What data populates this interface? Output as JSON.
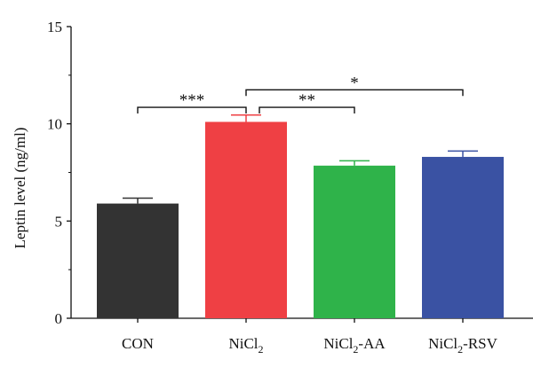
{
  "chart_data": {
    "type": "bar",
    "title": "",
    "xlabel": "",
    "ylabel": "Leptin level (ng/ml)",
    "ylim": [
      0,
      15
    ],
    "yticks": [
      0,
      5,
      10,
      15
    ],
    "grid": false,
    "legend": "none",
    "categories": [
      {
        "base": "CON",
        "sub": "",
        "suffix": ""
      },
      {
        "base": "NiCl",
        "sub": "2",
        "suffix": ""
      },
      {
        "base": "NiCl",
        "sub": "2",
        "suffix": "-AA"
      },
      {
        "base": "NiCl",
        "sub": "2",
        "suffix": "-RSV"
      }
    ],
    "values": [
      5.9,
      10.1,
      7.85,
      8.3
    ],
    "errors": [
      0.28,
      0.35,
      0.25,
      0.3
    ],
    "colors": [
      "#333333",
      "#ef4044",
      "#2fb34a",
      "#3a52a3"
    ],
    "error_colors": [
      "#333333",
      "#ef4044",
      "#2fb34a",
      "#3a52a3"
    ],
    "significance": [
      {
        "from": 0,
        "to": 1,
        "label": "***",
        "level": 10.85
      },
      {
        "from": 1,
        "to": 2,
        "label": "**",
        "level": 10.85
      },
      {
        "from": 1,
        "to": 3,
        "label": "*",
        "level": 11.75
      }
    ]
  }
}
